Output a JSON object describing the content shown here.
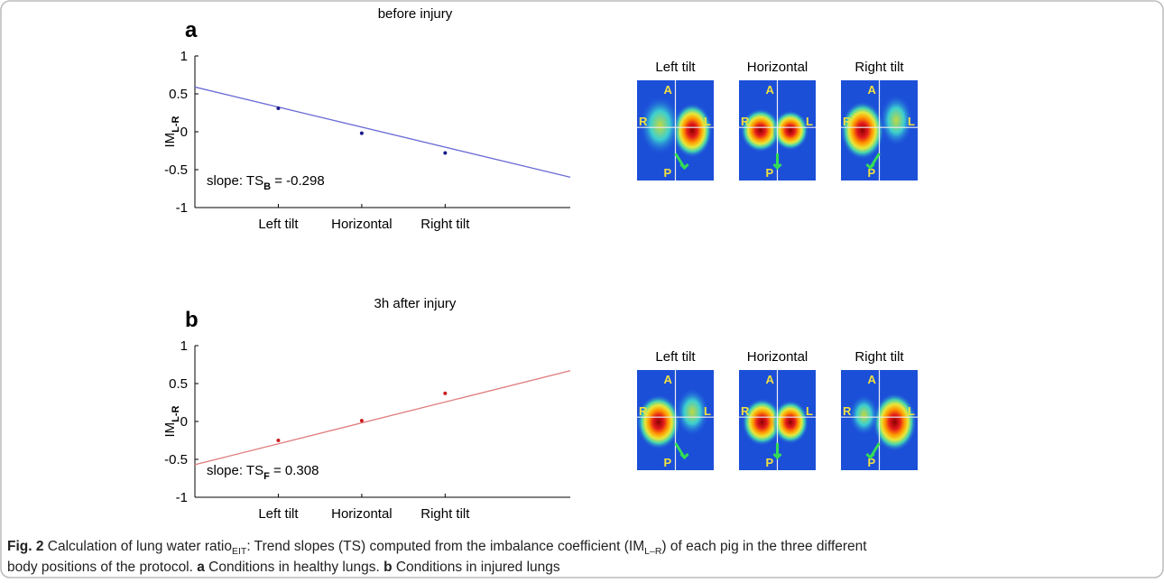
{
  "chart_data": [
    {
      "type": "line",
      "panel": "a",
      "title": "before injury",
      "ylabel": {
        "text": "IM",
        "sub": "L-R"
      },
      "annotation": {
        "text": "slope: TS",
        "sub": "B",
        "rest": " = -0.298"
      },
      "xlim": [
        0,
        4.5
      ],
      "ylim": [
        -1,
        1
      ],
      "yticks": [
        -1,
        -0.5,
        0,
        0.5,
        1
      ],
      "xticks": [
        {
          "value": 1,
          "label": "Left tilt"
        },
        {
          "value": 2,
          "label": "Horizontal"
        },
        {
          "value": 3,
          "label": "Right tilt"
        }
      ],
      "series": [
        {
          "x": [
            1,
            2,
            3
          ],
          "values": [
            0.31,
            -0.02,
            -0.28
          ],
          "color": "#1a1a8c"
        },
        {
          "x": [
            0,
            4.5
          ],
          "values": [
            0.59,
            -0.6
          ],
          "color": "#6b6bd6"
        }
      ]
    },
    {
      "type": "line",
      "panel": "b",
      "title": "3h after injury",
      "ylabel": {
        "text": "IM",
        "sub": "L-R"
      },
      "annotation": {
        "text": "slope: TS",
        "sub": "F",
        "rest": " = 0.308"
      },
      "xlim": [
        0,
        4.5
      ],
      "ylim": [
        -1,
        1
      ],
      "yticks": [
        -1,
        -0.5,
        0,
        0.5,
        1
      ],
      "xticks": [
        {
          "value": 1,
          "label": "Left tilt"
        },
        {
          "value": 2,
          "label": "Horizontal"
        },
        {
          "value": 3,
          "label": "Right tilt"
        }
      ],
      "series": [
        {
          "x": [
            1,
            2,
            3
          ],
          "values": [
            -0.25,
            0.01,
            0.37
          ],
          "color": "#c81e1e"
        },
        {
          "x": [
            0,
            4.5
          ],
          "values": [
            -0.57,
            0.67
          ],
          "color": "#e07a7a"
        }
      ]
    }
  ],
  "eit_panels": [
    {
      "images": [
        {
          "title": "Left tilt"
        },
        {
          "title": "Horizontal"
        },
        {
          "title": "Right tilt"
        }
      ]
    },
    {
      "images": [
        {
          "title": "Left tilt"
        },
        {
          "title": "Horizontal"
        },
        {
          "title": "Right tilt"
        }
      ]
    }
  ],
  "orientation_labels": {
    "anterior": "A",
    "posterior": "P",
    "right": "R",
    "left": "L"
  },
  "caption": [
    [
      {
        "text": "Fig. 2",
        "bold": true
      },
      {
        "text": " Calculation of lung water ratio"
      },
      {
        "text": "EIT",
        "sub": true
      },
      {
        "text": ": Trend slopes (TS) computed from the imbalance coefficient (IM"
      },
      {
        "text": "L–R",
        "sub": true
      },
      {
        "text": ") of each pig in the three different"
      }
    ],
    [
      {
        "text": "body positions of the protocol. "
      },
      {
        "text": "a",
        "bold": true
      },
      {
        "text": " Conditions in healthy lungs. "
      },
      {
        "text": "b",
        "bold": true
      },
      {
        "text": " Conditions in injured lungs"
      }
    ]
  ]
}
